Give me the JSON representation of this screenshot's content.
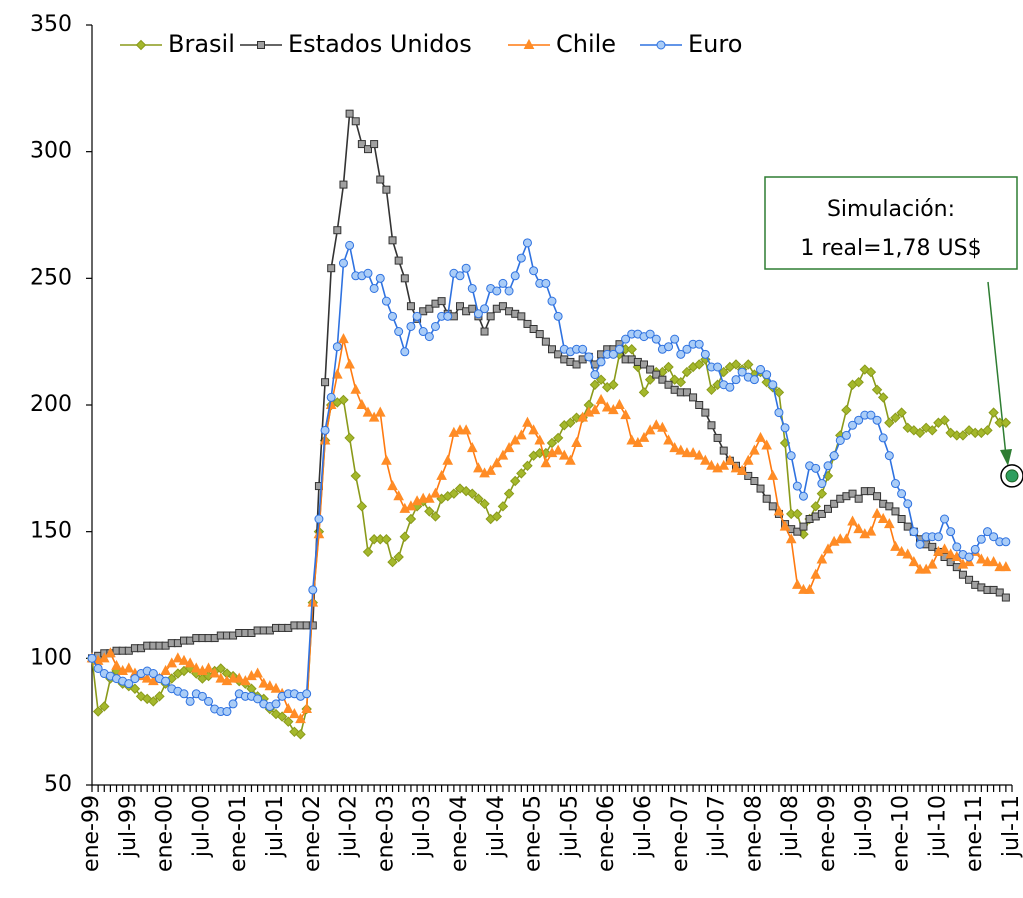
{
  "chart_data": {
    "type": "line",
    "categories": [
      "ene-99",
      null,
      null,
      null,
      null,
      null,
      "jul-99",
      null,
      null,
      null,
      null,
      null,
      "ene-00",
      null,
      null,
      null,
      null,
      null,
      "jul-00",
      null,
      null,
      null,
      null,
      null,
      "ene-01",
      null,
      null,
      null,
      null,
      null,
      "jul-01",
      null,
      null,
      null,
      null,
      null,
      "ene-02",
      null,
      null,
      null,
      null,
      null,
      "jul-02",
      null,
      null,
      null,
      null,
      null,
      "ene-03",
      null,
      null,
      null,
      null,
      null,
      "jul-03",
      null,
      null,
      null,
      null,
      null,
      "ene-04",
      null,
      null,
      null,
      null,
      null,
      "jul-04",
      null,
      null,
      null,
      null,
      null,
      "ene-05",
      null,
      null,
      null,
      null,
      null,
      "jul-05",
      null,
      null,
      null,
      null,
      null,
      "ene-06",
      null,
      null,
      null,
      null,
      null,
      "jul-06",
      null,
      null,
      null,
      null,
      null,
      "ene-07",
      null,
      null,
      null,
      null,
      null,
      "jul-07",
      null,
      null,
      null,
      null,
      null,
      "ene-08",
      null,
      null,
      null,
      null,
      null,
      "jul-08",
      null,
      null,
      null,
      null,
      null,
      "ene-09",
      null,
      null,
      null,
      null,
      null,
      "jul-09",
      null,
      null,
      null,
      null,
      null,
      "ene-10",
      null,
      null,
      null,
      null,
      null,
      "jul-10",
      null,
      null,
      null,
      null,
      null,
      "ene-11",
      null,
      null,
      null,
      null,
      null,
      "jul-11"
    ],
    "series": [
      {
        "name": "Brasil",
        "color": "#8a9a1a",
        "marker_fill": "#a4b82c",
        "marker": "diamond",
        "values": [
          100,
          79,
          81,
          92,
          95,
          90,
          89,
          88,
          85,
          84,
          83,
          85,
          90,
          92,
          94,
          95,
          96,
          94,
          92,
          93,
          95,
          96,
          94,
          93,
          91,
          90,
          88,
          85,
          84,
          80,
          78,
          77,
          75,
          71,
          70,
          80,
          122,
          150,
          186,
          200,
          201,
          202,
          187,
          172,
          160,
          142,
          147,
          147,
          147,
          138,
          140,
          148,
          155,
          160,
          162,
          158,
          156,
          163,
          164,
          165,
          167,
          166,
          165,
          163,
          161,
          155,
          156,
          160,
          165,
          170,
          173,
          176,
          180,
          181,
          181,
          185,
          187,
          192,
          193,
          195,
          195,
          200,
          208,
          210,
          207,
          208,
          220,
          222,
          222,
          215,
          205,
          210,
          213,
          213,
          215,
          210,
          209,
          213,
          215,
          216,
          218,
          206,
          208,
          213,
          215,
          216,
          214,
          216,
          212,
          213,
          209,
          207,
          205,
          185,
          157,
          157,
          149,
          155,
          160,
          165,
          172,
          180,
          188,
          198,
          208,
          209,
          214,
          213,
          206,
          203,
          193,
          195,
          197,
          191,
          190,
          189,
          191,
          190,
          193,
          194,
          189,
          188,
          188,
          190,
          189,
          189,
          190,
          197,
          193,
          193,
          null
        ]
      },
      {
        "name": "Estados Unidos",
        "color": "#333333",
        "marker_fill": "#a0a0a0",
        "marker": "square",
        "values": [
          100,
          101,
          102,
          102,
          103,
          103,
          103,
          104,
          104,
          105,
          105,
          105,
          105,
          106,
          106,
          107,
          107,
          108,
          108,
          108,
          108,
          109,
          109,
          109,
          110,
          110,
          110,
          111,
          111,
          111,
          112,
          112,
          112,
          113,
          113,
          113,
          113,
          168,
          209,
          254,
          269,
          287,
          315,
          312,
          303,
          301,
          303,
          289,
          285,
          265,
          257,
          250,
          239,
          234,
          237,
          238,
          240,
          241,
          236,
          235,
          239,
          237,
          238,
          235,
          229,
          235,
          238,
          239,
          237,
          236,
          235,
          232,
          230,
          228,
          225,
          222,
          220,
          218,
          217,
          216,
          218,
          219,
          216,
          220,
          222,
          222,
          224,
          218,
          218,
          217,
          216,
          214,
          212,
          210,
          208,
          206,
          205,
          205,
          203,
          200,
          197,
          192,
          187,
          182,
          178,
          176,
          174,
          172,
          170,
          167,
          163,
          160,
          157,
          153,
          151,
          150,
          152,
          155,
          156,
          157,
          159,
          161,
          163,
          164,
          165,
          163,
          166,
          166,
          164,
          161,
          160,
          158,
          155,
          152,
          150,
          147,
          145,
          144,
          142,
          140,
          138,
          136,
          133,
          131,
          129,
          128,
          127,
          127,
          126,
          124,
          null
        ]
      },
      {
        "name": "Chile",
        "color": "#ff7a10",
        "marker_fill": "#ff8c26",
        "marker": "triangle",
        "values": [
          100,
          99,
          100,
          102,
          97,
          95,
          96,
          94,
          93,
          92,
          91,
          92,
          95,
          98,
          100,
          99,
          98,
          96,
          95,
          96,
          94,
          92,
          91,
          92,
          92,
          91,
          93,
          94,
          90,
          89,
          88,
          86,
          80,
          78,
          76,
          80,
          122,
          149,
          186,
          200,
          212,
          226,
          216,
          206,
          200,
          197,
          195,
          197,
          178,
          168,
          164,
          159,
          160,
          162,
          163,
          163,
          165,
          172,
          178,
          189,
          190,
          190,
          183,
          175,
          173,
          174,
          177,
          180,
          183,
          186,
          188,
          193,
          190,
          186,
          177,
          181,
          182,
          180,
          178,
          185,
          195,
          197,
          198,
          202,
          199,
          198,
          200,
          196,
          186,
          185,
          187,
          190,
          192,
          191,
          186,
          183,
          182,
          181,
          181,
          180,
          178,
          176,
          175,
          176,
          178,
          175,
          174,
          178,
          182,
          187,
          184,
          172,
          158,
          152,
          147,
          129,
          127,
          127,
          133,
          139,
          143,
          146,
          147,
          147,
          154,
          151,
          149,
          150,
          157,
          155,
          153,
          144,
          142,
          141,
          138,
          135,
          135,
          137,
          142,
          143,
          141,
          140,
          137,
          138,
          142,
          139,
          138,
          138,
          136,
          136,
          null
        ]
      },
      {
        "name": "Euro",
        "color": "#2f72e0",
        "marker_fill": "#a9ccf7",
        "marker": "circle",
        "values": [
          100,
          96,
          94,
          93,
          92,
          91,
          90,
          92,
          94,
          95,
          94,
          92,
          91,
          88,
          87,
          86,
          83,
          86,
          85,
          83,
          80,
          79,
          79,
          82,
          86,
          85,
          85,
          84,
          82,
          81,
          82,
          85,
          86,
          86,
          85,
          86,
          127,
          155,
          190,
          203,
          223,
          256,
          263,
          251,
          251,
          252,
          246,
          250,
          241,
          235,
          229,
          221,
          231,
          235,
          229,
          227,
          231,
          235,
          235,
          252,
          251,
          254,
          246,
          236,
          238,
          246,
          245,
          248,
          245,
          251,
          258,
          264,
          253,
          248,
          248,
          241,
          235,
          222,
          221,
          222,
          222,
          219,
          212,
          217,
          220,
          220,
          222,
          226,
          228,
          228,
          227,
          228,
          226,
          222,
          223,
          226,
          220,
          222,
          224,
          224,
          220,
          215,
          215,
          208,
          207,
          210,
          213,
          211,
          210,
          214,
          212,
          208,
          197,
          191,
          180,
          168,
          164,
          176,
          175,
          169,
          176,
          180,
          186,
          188,
          192,
          194,
          196,
          196,
          194,
          187,
          180,
          169,
          165,
          161,
          150,
          145,
          148,
          148,
          148,
          155,
          150,
          144,
          141,
          140,
          143,
          147,
          150,
          148,
          146,
          146,
          null
        ]
      }
    ],
    "ylim": [
      50,
      350
    ],
    "yticks": [
      50,
      100,
      150,
      200,
      250,
      300,
      350
    ],
    "grid": false,
    "legend": "top",
    "annotation": {
      "text": [
        "Simulación:",
        "1 real=1,78 US$"
      ],
      "value": 172,
      "color": "#2e9e5e"
    }
  }
}
